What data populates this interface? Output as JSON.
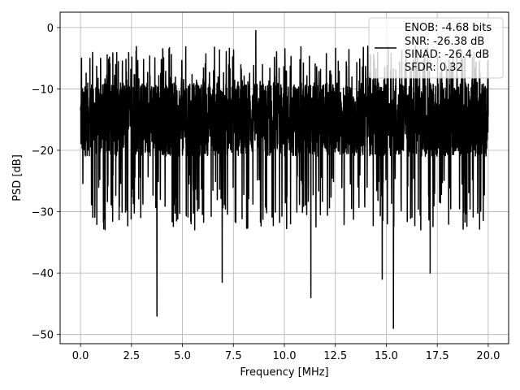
{
  "chart_data": {
    "type": "line",
    "title": "",
    "xlabel": "Frequency [MHz]",
    "ylabel": "PSD [dB]",
    "xlim": [
      -1.0,
      21.0
    ],
    "ylim": [
      -51.5,
      2.5
    ],
    "xticks": [
      0.0,
      2.5,
      5.0,
      7.5,
      10.0,
      12.5,
      15.0,
      17.5,
      20.0
    ],
    "xtick_labels": [
      "0.0",
      "2.5",
      "5.0",
      "7.5",
      "10.0",
      "12.5",
      "15.0",
      "17.5",
      "20.0"
    ],
    "yticks": [
      0,
      -10,
      -20,
      -30,
      -40,
      -50
    ],
    "ytick_labels": [
      "0",
      "−10",
      "−20",
      "−30",
      "−40",
      "−50"
    ],
    "grid": true,
    "legend_position": "top-right",
    "series": [
      {
        "color": "#000000",
        "x_range": [
          0.0,
          20.0
        ],
        "approx_mean_db": -15,
        "notable_points": [
          {
            "x": 0.05,
            "y": -5
          },
          {
            "x": 8.6,
            "y": -0.5
          },
          {
            "x": 3.75,
            "y": -47
          },
          {
            "x": 6.95,
            "y": -41.5
          },
          {
            "x": 11.3,
            "y": -44
          },
          {
            "x": 14.8,
            "y": -41
          },
          {
            "x": 15.35,
            "y": -49
          },
          {
            "x": 17.15,
            "y": -40
          }
        ]
      }
    ],
    "legend_lines": [
      "ENOB: -4.68 bits",
      "SNR: -26.38 dB",
      "SINAD: -26.4 dB",
      "SFDR: 0.32"
    ]
  }
}
